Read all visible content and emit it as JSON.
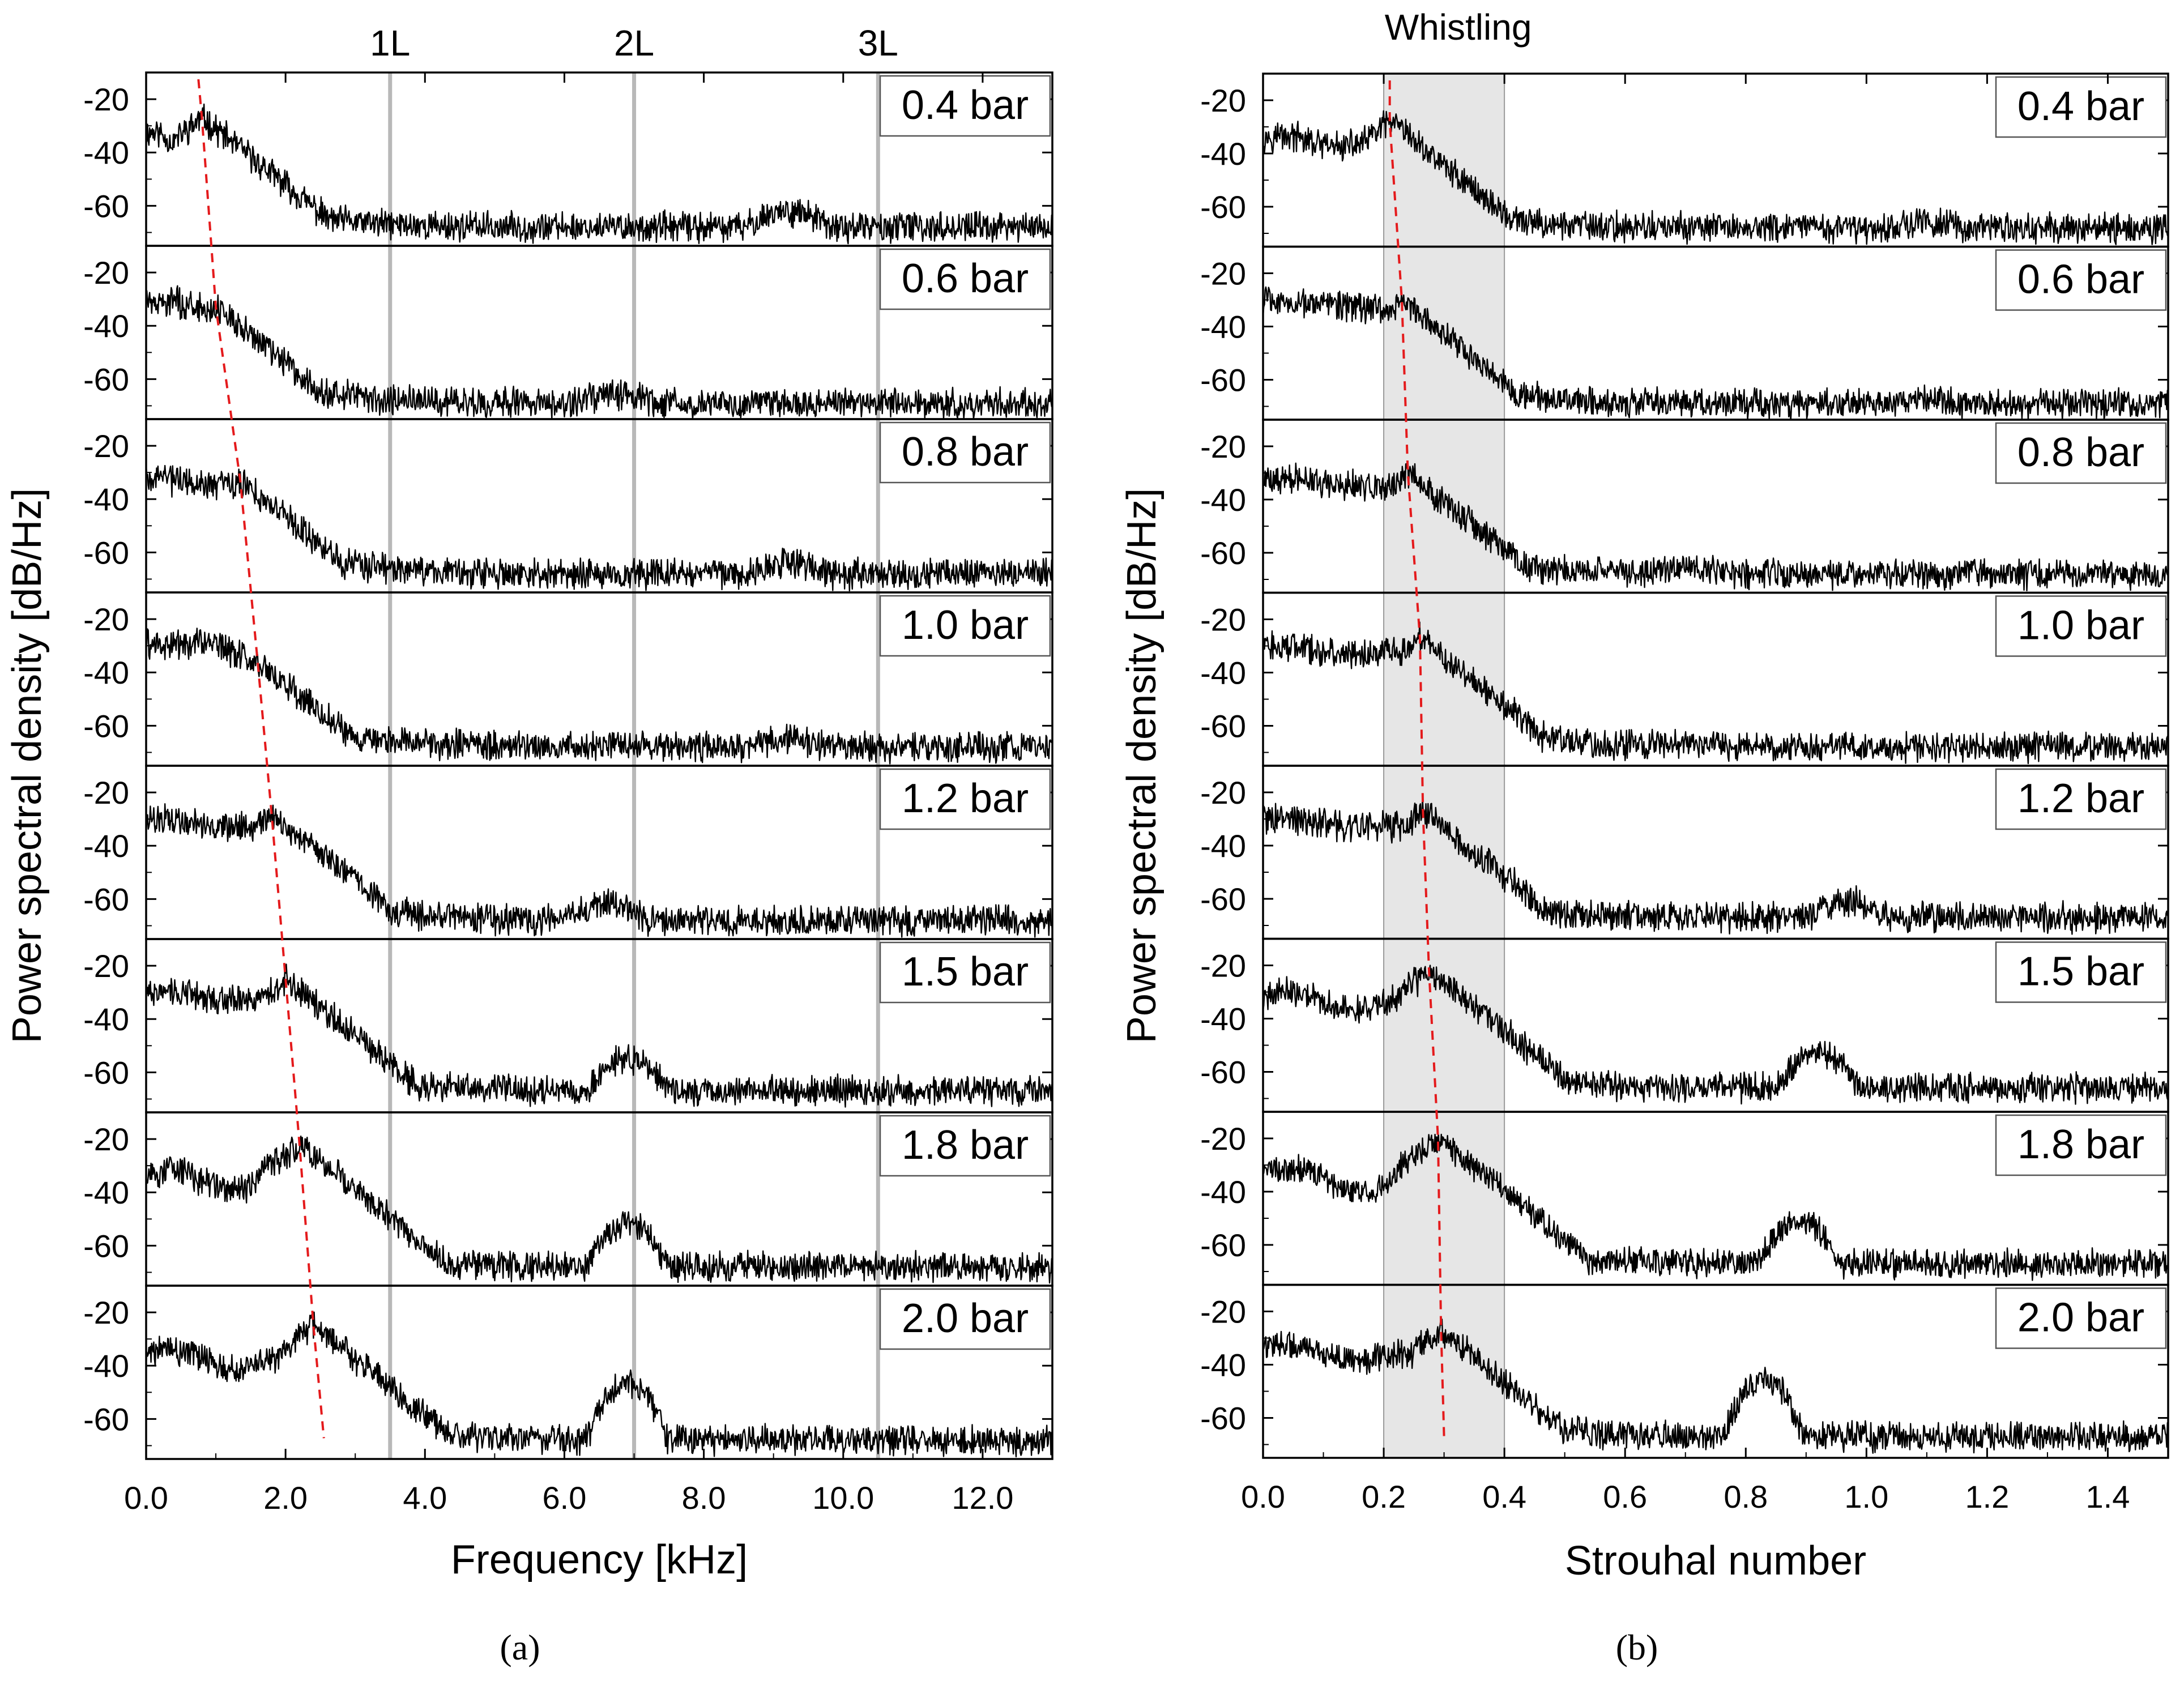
{
  "figure": {
    "caption_a": "(a)",
    "caption_b": "(b)"
  },
  "chart_data": [
    {
      "id": "a",
      "type": "line",
      "title": "",
      "xlabel": "Frequency [kHz]",
      "ylabel": "Power spectral density [dB/Hz]",
      "xlim": [
        0,
        13
      ],
      "ylim": [
        -75,
        -10
      ],
      "xticks": [
        0,
        2,
        4,
        6,
        8,
        10,
        12
      ],
      "xtick_labels": [
        "0.0",
        "2.0",
        "4.0",
        "6.0",
        "8.0",
        "10.0",
        "12.0"
      ],
      "yticks": [
        -20,
        -40,
        -60
      ],
      "ytick_labels": [
        "-20",
        "-40",
        "-60"
      ],
      "panel_labels": [
        "0.4 bar",
        "0.6 bar",
        "0.8 bar",
        "1.0 bar",
        "1.2 bar",
        "1.5 bar",
        "1.8 bar",
        "2.0 bar"
      ],
      "vertical_lines": [
        {
          "label": "1L",
          "x": 3.5
        },
        {
          "label": "2L",
          "x": 7.0
        },
        {
          "label": "3L",
          "x": 10.5
        }
      ],
      "whistle_peak_x": [
        0.8,
        1.0,
        1.35,
        1.6,
        1.8,
        2.0,
        2.2,
        2.4
      ],
      "whistle_peak_y": [
        -27,
        -33,
        -33,
        -36,
        -28,
        -25,
        -22,
        -25
      ],
      "trend_line": {
        "x": [
          0.75,
          2.55
        ],
        "panel_from": 0,
        "panel_to": 7,
        "color": "#e41a1c",
        "style": "dashed"
      },
      "series": [
        {
          "name": "0.4 bar",
          "base": -68,
          "low": -33,
          "peak_x": 0.8,
          "peak_y": -27,
          "bump_x": 9.2,
          "bump_y": -62
        },
        {
          "name": "0.6 bar",
          "base": -69,
          "low": -30,
          "peak_x": 1.0,
          "peak_y": -33,
          "bump_x": 6.8,
          "bump_y": -66
        },
        {
          "name": "0.8 bar",
          "base": -68,
          "low": -32,
          "peak_x": 1.35,
          "peak_y": -33,
          "bump_x": 9.2,
          "bump_y": -64
        },
        {
          "name": "1.0 bar",
          "base": -68,
          "low": -28,
          "peak_x": 1.6,
          "peak_y": -36,
          "bump_x": 9.2,
          "bump_y": -65
        },
        {
          "name": "1.2 bar",
          "base": -68,
          "low": -30,
          "peak_x": 1.8,
          "peak_y": -28,
          "bump_x": 6.6,
          "bump_y": -62
        },
        {
          "name": "1.5 bar",
          "base": -67,
          "low": -30,
          "peak_x": 2.0,
          "peak_y": -25,
          "bump_x": 6.9,
          "bump_y": -55
        },
        {
          "name": "1.8 bar",
          "base": -68,
          "low": -34,
          "peak_x": 2.2,
          "peak_y": -22,
          "bump_x": 6.9,
          "bump_y": -52
        },
        {
          "name": "2.0 bar",
          "base": -68,
          "low": -36,
          "peak_x": 2.4,
          "peak_y": -25,
          "bump_x": 6.9,
          "bump_y": -47
        }
      ]
    },
    {
      "id": "b",
      "type": "line",
      "title": "Whistling",
      "xlabel": "Strouhal number",
      "ylabel": "Power spectral density [dB/Hz]",
      "xlim": [
        0,
        1.5
      ],
      "ylim": [
        -75,
        -10
      ],
      "xticks": [
        0,
        0.2,
        0.4,
        0.6,
        0.8,
        1.0,
        1.2,
        1.4
      ],
      "xtick_labels": [
        "0.0",
        "0.2",
        "0.4",
        "0.6",
        "0.8",
        "1.0",
        "1.2",
        "1.4"
      ],
      "yticks": [
        -20,
        -40,
        -60
      ],
      "ytick_labels": [
        "-20",
        "-40",
        "-60"
      ],
      "panel_labels": [
        "0.4 bar",
        "0.6 bar",
        "0.8 bar",
        "1.0 bar",
        "1.2 bar",
        "1.5 bar",
        "1.8 bar",
        "2.0 bar"
      ],
      "shaded_band": {
        "label": "Whistling",
        "x0": 0.2,
        "x1": 0.4,
        "color": "#e6e6e6"
      },
      "whistle_peak_x": [
        0.21,
        0.23,
        0.24,
        0.26,
        0.265,
        0.275,
        0.29,
        0.295
      ],
      "whistle_peak_y": [
        -28,
        -30,
        -30,
        -27,
        -27,
        -22,
        -20,
        -27
      ],
      "trend_line": {
        "x": [
          0.21,
          0.3
        ],
        "panel_from": 0,
        "panel_to": 7,
        "color": "#e41a1c",
        "style": "dashed"
      },
      "series": [
        {
          "name": "0.4 bar",
          "base": -68,
          "low": -34,
          "peak_x": 0.21,
          "peak_y": -28,
          "bump_x": 1.1,
          "bump_y": -66
        },
        {
          "name": "0.6 bar",
          "base": -69,
          "low": -30,
          "peak_x": 0.23,
          "peak_y": -30,
          "bump_x": 1.1,
          "bump_y": -67
        },
        {
          "name": "0.8 bar",
          "base": -68,
          "low": -32,
          "peak_x": 0.24,
          "peak_y": -30,
          "bump_x": 0.7,
          "bump_y": -66
        },
        {
          "name": "1.0 bar",
          "base": -68,
          "low": -30,
          "peak_x": 0.26,
          "peak_y": -27,
          "bump_x": 0.7,
          "bump_y": -66
        },
        {
          "name": "1.2 bar",
          "base": -67,
          "low": -30,
          "peak_x": 0.265,
          "peak_y": -27,
          "bump_x": 0.97,
          "bump_y": -61
        },
        {
          "name": "1.5 bar",
          "base": -66,
          "low": -32,
          "peak_x": 0.275,
          "peak_y": -22,
          "bump_x": 0.92,
          "bump_y": -53
        },
        {
          "name": "1.8 bar",
          "base": -67,
          "low": -34,
          "peak_x": 0.29,
          "peak_y": -20,
          "bump_x": 0.89,
          "bump_y": -51
        },
        {
          "name": "2.0 bar",
          "base": -67,
          "low": -34,
          "peak_x": 0.295,
          "peak_y": -27,
          "bump_x": 0.83,
          "bump_y": -46
        }
      ]
    }
  ]
}
